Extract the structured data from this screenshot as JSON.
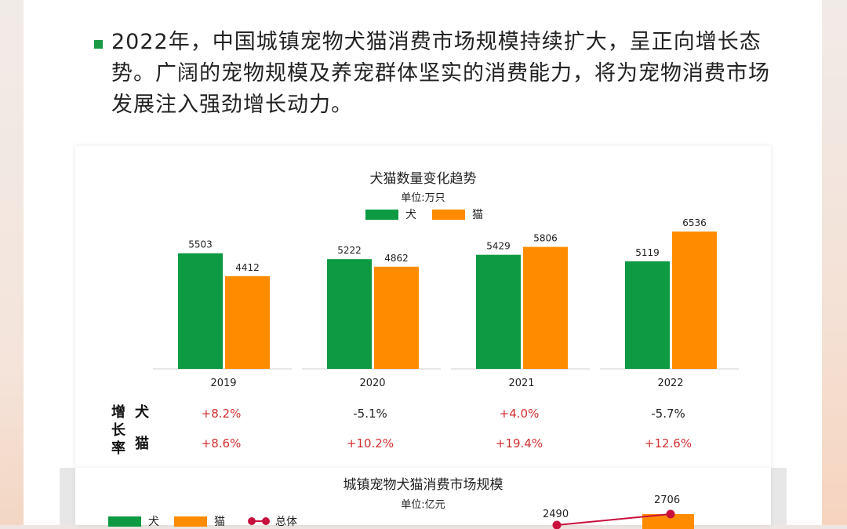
{
  "intro": {
    "text": "2022年，中国城镇宠物犬猫消费市场规模持续扩大，呈正向增长态势。广阔的宠物规模及养宠群体坚实的消费能力，将为宠物消费市场发展注入强劲增长动力。"
  },
  "colors": {
    "dog": "#0d9a42",
    "cat": "#ff8c00",
    "total": "#c8103c",
    "up": "#d32f2f",
    "down": "#222222",
    "accent": "#1a9a45"
  },
  "chart_data": [
    {
      "type": "bar",
      "title": "犬猫数量变化趋势",
      "subtitle": "单位:万只",
      "categories": [
        "2019",
        "2020",
        "2021",
        "2022"
      ],
      "series": [
        {
          "name": "犬",
          "values": [
            5503,
            5222,
            5429,
            5119
          ]
        },
        {
          "name": "猫",
          "values": [
            4412,
            4862,
            5806,
            6536
          ]
        }
      ],
      "ylim": [
        0,
        6536
      ],
      "legend": "top-center",
      "grid": false,
      "data_labels": true
    },
    {
      "type": "bar",
      "title": "城镇宠物犬猫消费市场规模",
      "subtitle": "单位:亿元",
      "legend_items": [
        "犬",
        "猫",
        "总体"
      ],
      "visible_labels": [
        "2490",
        "2706"
      ],
      "legend": "top-left"
    }
  ],
  "growth": {
    "label_chars": [
      "增",
      "长",
      "率"
    ],
    "dog_label": "犬",
    "cat_label": "猫",
    "dog": [
      {
        "text": "+8.2%",
        "dir": "up"
      },
      {
        "text": "-5.1%",
        "dir": "down"
      },
      {
        "text": "+4.0%",
        "dir": "up"
      },
      {
        "text": "-5.7%",
        "dir": "down"
      }
    ],
    "cat": [
      {
        "text": "+8.6%",
        "dir": "up"
      },
      {
        "text": "+10.2%",
        "dir": "up"
      },
      {
        "text": "+19.4%",
        "dir": "up"
      },
      {
        "text": "+12.6%",
        "dir": "up"
      }
    ]
  }
}
